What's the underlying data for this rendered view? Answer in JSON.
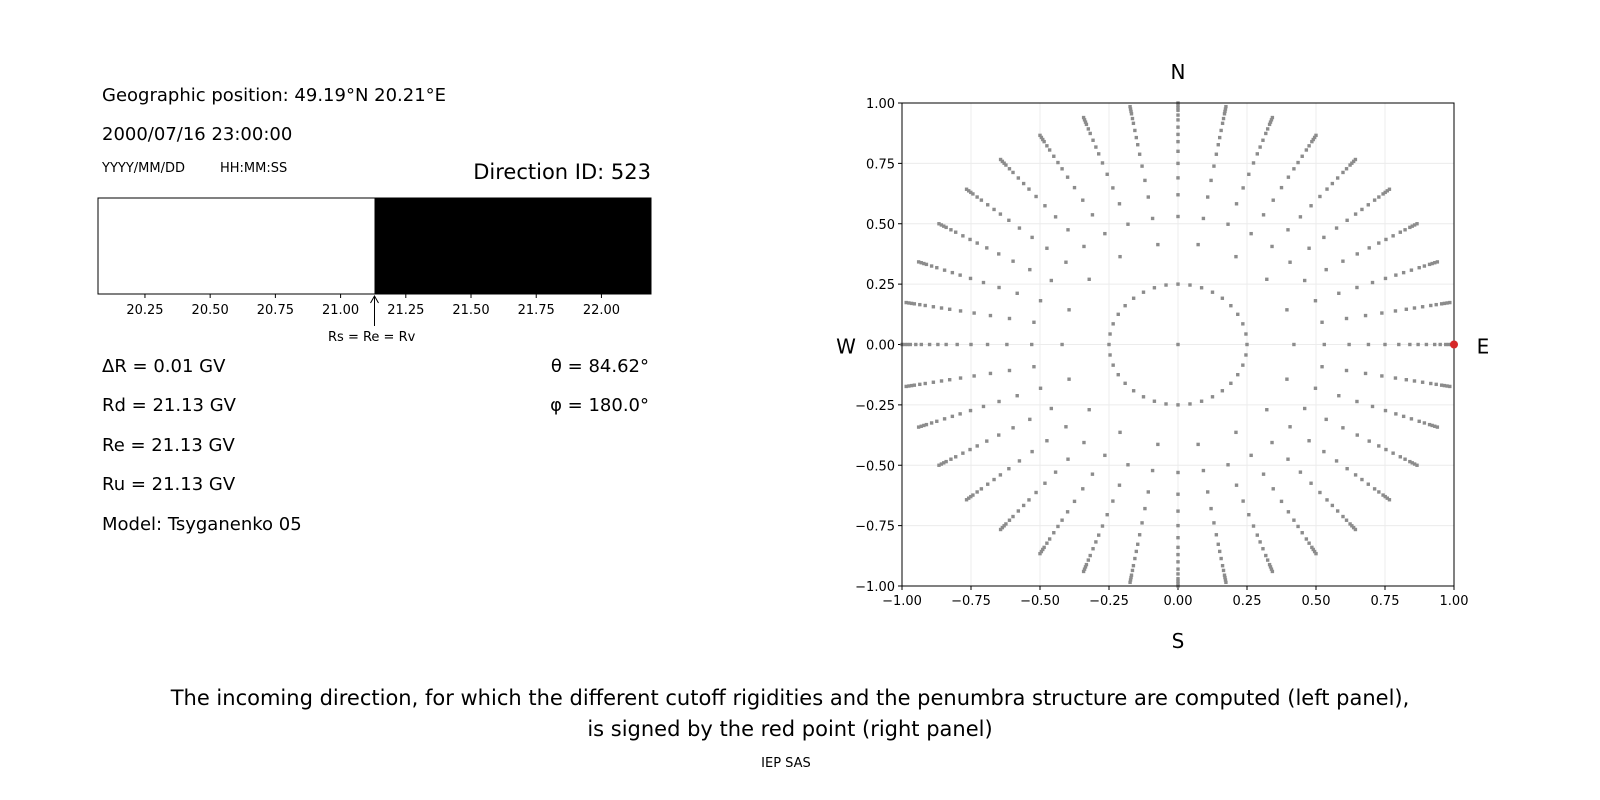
{
  "left_panel": {
    "position": "Geographic position: 49.19°N 20.21°E",
    "datetime": "2000/07/16 23:00:00",
    "date_format": "YYYY/MM/DD",
    "time_format": "HH:MM:SS",
    "direction_id": "Direction ID: 523",
    "delta_r": "ΔR = 0.01 GV",
    "rd": "Rd = 21.13 GV",
    "re": "Re = 21.13 GV",
    "ru": "Ru = 21.13 GV",
    "model": "Model: Tsyganenko 05",
    "theta": "θ = 84.62°",
    "phi": "φ = 180.0°"
  },
  "caption": {
    "line1": "The incoming direction, for which the different cutoff rigidities and the penumbra structure are computed (left panel),",
    "line2": "is signed by the red point (right panel)",
    "credit": "IEP SAS"
  },
  "chart_data": [
    {
      "type": "bar",
      "title": "",
      "xlim": [
        20.07,
        22.19
      ],
      "x_ticks": [
        "20.25",
        "20.50",
        "20.75",
        "21.00",
        "21.25",
        "21.50",
        "21.75",
        "22.00"
      ],
      "x_tick_values": [
        20.25,
        20.5,
        20.75,
        21.0,
        21.25,
        21.5,
        21.75,
        22.0
      ],
      "segments": [
        {
          "from": 20.07,
          "to": 21.13,
          "color": "#ffffff"
        },
        {
          "from": 21.13,
          "to": 22.19,
          "color": "#000000"
        }
      ],
      "annotation": {
        "text": "Rs = Re = Rv",
        "x": 21.13
      }
    },
    {
      "type": "scatter",
      "xlim": [
        -1,
        1
      ],
      "ylim": [
        -1,
        1
      ],
      "grid": true,
      "x_ticks": [
        "−1.00",
        "−0.75",
        "−0.50",
        "−0.25",
        "0.00",
        "0.25",
        "0.50",
        "0.75",
        "1.00"
      ],
      "y_ticks": [
        "−1.00",
        "−0.75",
        "−0.50",
        "−0.25",
        "0.00",
        "0.25",
        "0.50",
        "0.75",
        "1.00"
      ],
      "tick_values": [
        -1,
        -0.75,
        -0.5,
        -0.25,
        0,
        0.25,
        0.5,
        0.75,
        1
      ],
      "compass": {
        "n": "N",
        "s": "S",
        "w": "W",
        "e": "E"
      },
      "point_color": "#8c8c8c",
      "highlight_color": "#d62728",
      "center_point": [
        0,
        0
      ],
      "inner_ring_radius": 0.25,
      "inner_ring_count": 36,
      "middle_ring_radii": [
        0.42
      ],
      "middle_ring_count": 18,
      "spoke_angle_step_deg": 10,
      "spoke_radii": [
        0.53,
        0.62,
        0.69,
        0.75,
        0.8,
        0.84,
        0.87,
        0.9,
        0.93,
        0.95,
        0.97,
        0.98,
        0.99,
        1.0
      ],
      "highlight_point": [
        1.0,
        0.0
      ]
    }
  ]
}
